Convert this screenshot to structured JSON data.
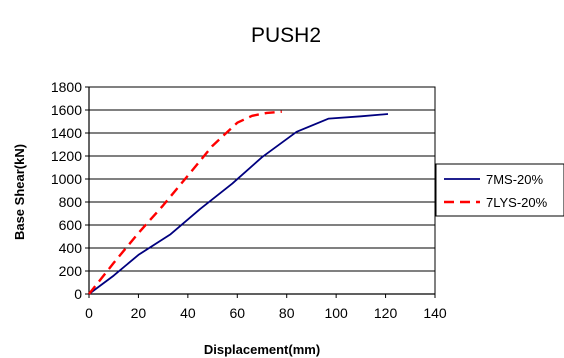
{
  "chart_data": {
    "type": "line",
    "title": "PUSH2",
    "xlabel": "Displacement(mm)",
    "ylabel": "Base Shear(kN)",
    "xlim": [
      0,
      140
    ],
    "ylim": [
      0,
      1800
    ],
    "xticks": [
      0,
      20,
      40,
      60,
      80,
      100,
      120,
      140
    ],
    "yticks": [
      0,
      200,
      400,
      600,
      800,
      1000,
      1200,
      1400,
      1600,
      1800
    ],
    "grid": "horizontal",
    "legend_position": "right",
    "series": [
      {
        "name": "7MS-20%",
        "color": "#00007f",
        "dash": "solid",
        "x": [
          0,
          10,
          20,
          33,
          45,
          58,
          70,
          84,
          97,
          110,
          121
        ],
        "y": [
          0,
          160,
          340,
          520,
          740,
          960,
          1190,
          1410,
          1525,
          1545,
          1565
        ]
      },
      {
        "name": "7LYS-20%",
        "color": "#ff0000",
        "dash": "dashed",
        "x": [
          0,
          10,
          20,
          30,
          40,
          50,
          60,
          66,
          72,
          78
        ],
        "y": [
          0,
          270,
          530,
          770,
          1030,
          1290,
          1490,
          1550,
          1575,
          1585
        ]
      }
    ]
  }
}
